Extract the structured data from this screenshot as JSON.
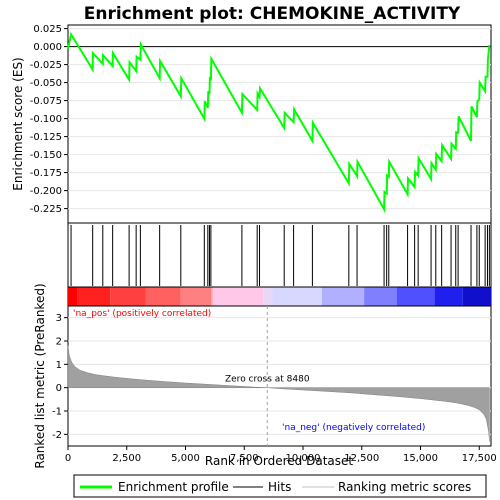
{
  "chart_data": [
    {
      "type": "line",
      "title": "Enrichment plot: CHEMOKINE_ACTIVITY",
      "ylabel": "Enrichment score (ES)",
      "xlim": [
        0,
        18000
      ],
      "ylim": [
        -0.245,
        0.03
      ],
      "yticks": [
        "0.025",
        "0.000",
        "-0.025",
        "-0.050",
        "-0.075",
        "-0.100",
        "-0.125",
        "-0.150",
        "-0.175",
        "-0.200",
        "-0.225"
      ],
      "ytick_values": [
        0.025,
        0.0,
        -0.025,
        -0.05,
        -0.075,
        -0.1,
        -0.125,
        -0.15,
        -0.175,
        -0.2,
        -0.225
      ],
      "grid": true,
      "series": [
        {
          "name": "Enrichment profile",
          "color": "#00ff00",
          "x": [
            0,
            130,
            1050,
            1060,
            1480,
            1490,
            1900,
            1910,
            2600,
            2620,
            2900,
            2920,
            3080,
            3100,
            3900,
            3920,
            4800,
            4820,
            5800,
            5820,
            5950,
            5970,
            6020,
            6040,
            6080,
            6100,
            7400,
            7420,
            8050,
            8070,
            8150,
            8170,
            9200,
            9220,
            9600,
            9620,
            10400,
            10420,
            11950,
            11970,
            12300,
            12320,
            13450,
            13470,
            13560,
            13580,
            13650,
            13670,
            14450,
            14470,
            14750,
            14770,
            14900,
            14920,
            15450,
            15470,
            15650,
            15670,
            15900,
            15920,
            16300,
            16320,
            16500,
            16520,
            16600,
            16620,
            17150,
            17170,
            17400,
            17420,
            17500,
            17520,
            17750,
            17770,
            17850,
            17870,
            17930
          ],
          "y": [
            -0.003,
            0.017,
            -0.032,
            -0.009,
            -0.024,
            -0.012,
            -0.027,
            -0.009,
            -0.046,
            -0.022,
            -0.034,
            -0.014,
            -0.018,
            0.003,
            -0.044,
            -0.02,
            -0.069,
            -0.044,
            -0.1,
            -0.076,
            -0.085,
            -0.062,
            -0.066,
            -0.042,
            -0.047,
            -0.017,
            -0.092,
            -0.066,
            -0.088,
            -0.065,
            -0.07,
            -0.058,
            -0.113,
            -0.092,
            -0.105,
            -0.087,
            -0.131,
            -0.106,
            -0.19,
            -0.163,
            -0.18,
            -0.16,
            -0.226,
            -0.202,
            -0.204,
            -0.179,
            -0.181,
            -0.16,
            -0.205,
            -0.183,
            -0.195,
            -0.174,
            -0.179,
            -0.155,
            -0.184,
            -0.162,
            -0.171,
            -0.149,
            -0.159,
            -0.137,
            -0.156,
            -0.135,
            -0.142,
            -0.119,
            -0.12,
            -0.097,
            -0.131,
            -0.083,
            -0.098,
            -0.076,
            -0.073,
            -0.05,
            -0.062,
            -0.042,
            -0.042,
            -0.018,
            0.002
          ]
        }
      ]
    },
    {
      "type": "scatter",
      "title": "",
      "legend_entry": "Hits",
      "hit_positions": [
        130,
        1050,
        1480,
        1900,
        2600,
        2900,
        3080,
        3900,
        4800,
        5800,
        5950,
        6020,
        6080,
        7400,
        8050,
        8150,
        9200,
        9600,
        10400,
        11950,
        12300,
        13450,
        13560,
        13650,
        14450,
        14750,
        14900,
        15450,
        15650,
        15900,
        16300,
        16500,
        16600,
        17150,
        17400,
        17500,
        17750,
        17850,
        17930
      ],
      "color": "#000000"
    },
    {
      "type": "heatmap",
      "title": "",
      "colors": [
        "#ff0000",
        "#ff2020",
        "#ff4040",
        "#ff6060",
        "#ff8080",
        "#ffa0a0",
        "#ffc8e8",
        "#e8d8f8",
        "#d8d8ff",
        "#b0b0ff",
        "#8080ff",
        "#5050ff",
        "#2020ee",
        "#1010cc"
      ],
      "boundaries": [
        0,
        400,
        1800,
        3300,
        4800,
        6100,
        6150,
        8300,
        8700,
        10800,
        12600,
        14000,
        15600,
        16800,
        18000
      ]
    },
    {
      "type": "area",
      "title": "",
      "ylabel": "Ranked list metric (PreRanked)",
      "xlabel": "Rank in Ordered Dataset",
      "xlim": [
        0,
        18000
      ],
      "ylim": [
        -2.5,
        3.5
      ],
      "yticks": [
        "3",
        "2",
        "1",
        "0",
        "-1",
        "-2"
      ],
      "ytick_values": [
        3,
        2,
        1,
        0,
        -1,
        -2
      ],
      "xticks": [
        "0",
        "2,500",
        "5,000",
        "7,500",
        "10,000",
        "12,500",
        "15,000",
        "17,500"
      ],
      "xtick_values": [
        0,
        2500,
        5000,
        7500,
        10000,
        12500,
        15000,
        17500
      ],
      "color": "#a0a0a0",
      "x": [
        0,
        50,
        150,
        300,
        500,
        800,
        1200,
        2000,
        3000,
        4000,
        5000,
        6000,
        7000,
        8000,
        8480,
        9000,
        10000,
        11000,
        12000,
        13000,
        14000,
        15000,
        16000,
        16500,
        17000,
        17300,
        17500,
        17700,
        17800,
        17900,
        17930
      ],
      "y": [
        1.8,
        1.4,
        1.1,
        0.9,
        0.75,
        0.65,
        0.55,
        0.45,
        0.35,
        0.27,
        0.2,
        0.14,
        0.08,
        0.02,
        0.0,
        -0.04,
        -0.1,
        -0.16,
        -0.22,
        -0.3,
        -0.38,
        -0.47,
        -0.58,
        -0.65,
        -0.75,
        -0.85,
        -0.95,
        -1.15,
        -1.35,
        -1.9,
        -2.3
      ],
      "zero_cross_label": "Zero cross at 8480",
      "zero_cross": 8480,
      "pos_label": "'na_pos' (positively correlated)",
      "neg_label": "'na_neg' (negatively correlated)",
      "pos_color": "#ff0000",
      "neg_color": "#0000ff"
    }
  ],
  "legend": {
    "items": [
      {
        "label": "Enrichment profile",
        "color": "#00ff00"
      },
      {
        "label": "Hits",
        "color": "#000000"
      },
      {
        "label": "Ranking metric scores",
        "color": "#c0c0c0"
      }
    ]
  }
}
